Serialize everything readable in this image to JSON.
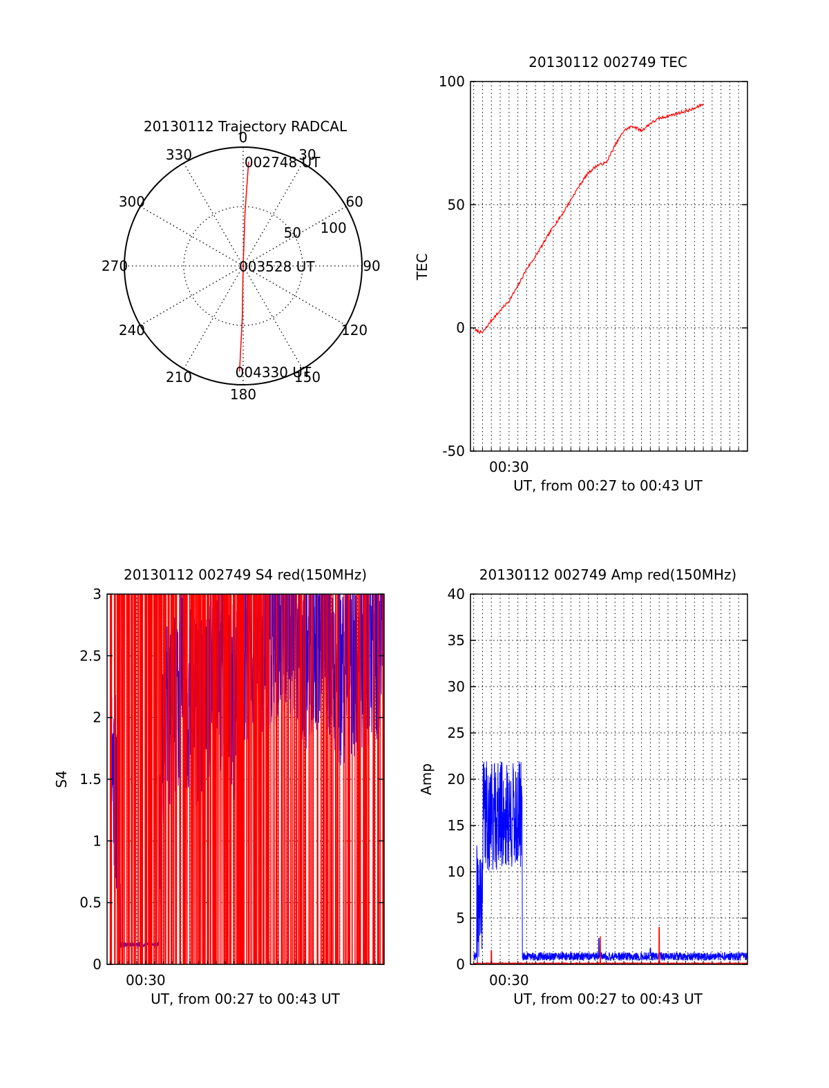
{
  "colors": {
    "red": "#ff0000",
    "blue": "#0000ff",
    "axis": "#000000",
    "grid": "#000000",
    "background": "#ffffff"
  },
  "chart_data": [
    {
      "type": "polar",
      "title": "20130112 Trajectory RADCAL",
      "azimuth_labels": [
        "0",
        "30",
        "60",
        "90",
        "120",
        "150",
        "180",
        "210",
        "240",
        "270",
        "300",
        "330"
      ],
      "radial_ticks": [
        50,
        100
      ],
      "radial_range": [
        0,
        100
      ],
      "grid": true,
      "annotations": [
        {
          "text": "002748 UT",
          "az": 3,
          "r": 88
        },
        {
          "text": "003528 UT",
          "az": 0,
          "r": 0
        },
        {
          "text": "004330 UT",
          "az": 182,
          "r": 89
        }
      ],
      "series": [
        {
          "color": "red",
          "points": [
            [
              3,
              88
            ],
            [
              2,
              45
            ],
            [
              0,
              0
            ],
            [
              181,
              45
            ],
            [
              182,
              89
            ]
          ]
        }
      ]
    },
    {
      "type": "line",
      "title": "20130112 002749 TEC",
      "xlabel": "UT, from 00:27 to 00:43 UT",
      "ylabel": "TEC",
      "xlim": [
        "00:27:49",
        "00:43:30"
      ],
      "ylim": [
        -50,
        100
      ],
      "yticks": [
        -50,
        0,
        50,
        100
      ],
      "xticks": [
        "00:30"
      ],
      "grid": true,
      "series": [
        {
          "color": "red",
          "points": [
            [
              "00:28:05",
              -1
            ],
            [
              "00:28:30",
              -2
            ],
            [
              "00:29:00",
              3
            ],
            [
              "00:29:30",
              7
            ],
            [
              "00:30:00",
              11
            ],
            [
              "00:30:30",
              17
            ],
            [
              "00:31:00",
              24
            ],
            [
              "00:31:30",
              29
            ],
            [
              "00:32:00",
              35
            ],
            [
              "00:32:30",
              41
            ],
            [
              "00:33:00",
              46
            ],
            [
              "00:33:30",
              52
            ],
            [
              "00:34:00",
              58
            ],
            [
              "00:34:30",
              63
            ],
            [
              "00:35:00",
              66
            ],
            [
              "00:35:30",
              67
            ],
            [
              "00:36:00",
              74
            ],
            [
              "00:36:30",
              80
            ],
            [
              "00:37:00",
              82
            ],
            [
              "00:37:30",
              80
            ],
            [
              "00:38:00",
              83
            ],
            [
              "00:38:30",
              85
            ],
            [
              "00:39:00",
              86
            ],
            [
              "00:39:30",
              87
            ],
            [
              "00:40:00",
              88
            ],
            [
              "00:40:30",
              89
            ],
            [
              "00:41:00",
              91
            ]
          ]
        }
      ]
    },
    {
      "type": "line",
      "title": "20130112 002749 S4 red(150MHz)",
      "xlabel": "UT, from 00:27 to 00:43 UT",
      "ylabel": "S4",
      "xlim": [
        "00:27:49",
        "00:43:30"
      ],
      "ylim": [
        0,
        3
      ],
      "yticks": [
        0,
        0.5,
        1,
        1.5,
        2,
        2.5,
        3
      ],
      "xticks": [
        "00:30"
      ],
      "grid": true,
      "series": [
        {
          "color": "blue",
          "points": [
            [
              "00:28:00",
              1.8
            ],
            [
              "00:28:20",
              1.4
            ],
            [
              "00:28:40",
              0.18
            ],
            [
              "00:29:00",
              0.16
            ],
            [
              "00:29:30",
              0.17
            ],
            [
              "00:30:00",
              0.17
            ],
            [
              "00:30:40",
              0.17
            ],
            [
              "00:31:00",
              1.9
            ],
            [
              "00:32:00",
              2.3
            ],
            [
              "00:33:00",
              2.0
            ],
            [
              "00:34:00",
              2.4
            ],
            [
              "00:35:00",
              2.1
            ],
            [
              "00:36:00",
              2.7
            ],
            [
              "00:37:00",
              2.6
            ],
            [
              "00:38:00",
              2.9
            ],
            [
              "00:39:00",
              2.5
            ],
            [
              "00:40:00",
              2.8
            ],
            [
              "00:41:00",
              2.4
            ],
            [
              "00:43:00",
              2.6
            ]
          ]
        },
        {
          "color": "red",
          "points": [
            [
              "00:28:00",
              3.0
            ],
            [
              "00:29:00",
              0.0
            ],
            [
              "00:30:00",
              3.0
            ],
            [
              "00:31:00",
              0.0
            ],
            [
              "00:32:00",
              3.0
            ],
            [
              "00:33:00",
              0.0
            ],
            [
              "00:34:00",
              3.0
            ],
            [
              "00:35:00",
              0.0
            ],
            [
              "00:36:00",
              3.0
            ],
            [
              "00:37:00",
              0.0
            ],
            [
              "00:38:00",
              3.0
            ],
            [
              "00:39:00",
              0.0
            ],
            [
              "00:40:00",
              3.0
            ],
            [
              "00:41:00",
              0.0
            ],
            [
              "00:42:00",
              3.0
            ],
            [
              "00:43:00",
              0.0
            ]
          ]
        }
      ]
    },
    {
      "type": "line",
      "title": "20130112 002749 Amp red(150MHz)",
      "xlabel": "UT, from 00:27 to 00:43 UT",
      "ylabel": "Amp",
      "xlim": [
        "00:27:49",
        "00:43:30"
      ],
      "ylim": [
        0,
        40
      ],
      "yticks": [
        0,
        5,
        10,
        15,
        20,
        25,
        30,
        35,
        40
      ],
      "xticks": [
        "00:30"
      ],
      "grid": true,
      "series": [
        {
          "color": "blue",
          "points": [
            [
              "00:28:00",
              1.0
            ],
            [
              "00:28:20",
              13.0
            ],
            [
              "00:28:40",
              22.0
            ],
            [
              "00:29:00",
              10.0
            ],
            [
              "00:29:30",
              22.0
            ],
            [
              "00:30:00",
              9.0
            ],
            [
              "00:30:20",
              21.0
            ],
            [
              "00:30:40",
              8.0
            ],
            [
              "00:30:50",
              1.0
            ],
            [
              "00:32:00",
              0.8
            ],
            [
              "00:34:00",
              0.7
            ],
            [
              "00:35:00",
              2.8
            ],
            [
              "00:36:00",
              0.8
            ],
            [
              "00:38:00",
              1.5
            ],
            [
              "00:40:00",
              0.8
            ],
            [
              "00:43:00",
              0.9
            ]
          ]
        },
        {
          "color": "red",
          "points": [
            [
              "00:28:00",
              0.1
            ],
            [
              "00:29:00",
              1.5
            ],
            [
              "00:30:00",
              0.2
            ],
            [
              "00:31:00",
              0.1
            ],
            [
              "00:35:10",
              3.0
            ],
            [
              "00:38:30",
              4.0
            ],
            [
              "00:43:00",
              0.1
            ]
          ]
        }
      ]
    }
  ]
}
